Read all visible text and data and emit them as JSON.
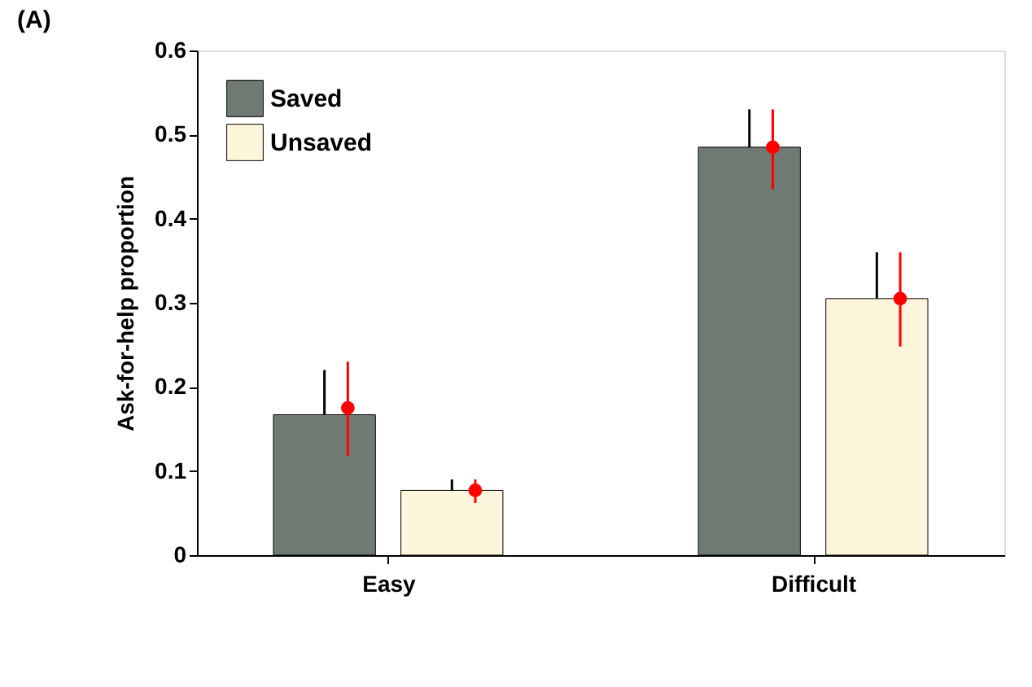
{
  "chart_data": {
    "type": "bar",
    "title": "(A)",
    "ylabel": "Ask-for-help proportion",
    "categories": [
      "Easy",
      "Difficult"
    ],
    "series": [
      {
        "name": "Saved",
        "color": "#6f7a72",
        "values": [
          0.167,
          0.485
        ],
        "errors": [
          [
            0.167,
            0.22
          ],
          [
            0.485,
            0.53
          ]
        ]
      },
      {
        "name": "Unsaved",
        "color": "#fdf5dc",
        "values": [
          0.077,
          0.305
        ],
        "errors": [
          [
            0.077,
            0.09
          ],
          [
            0.305,
            0.36
          ]
        ]
      },
      {
        "type": "scatter",
        "color": "#ff0000",
        "marker": "circle",
        "x": [
          "Easy",
          "Difficult"
        ],
        "values": [
          0.175,
          0.485
        ],
        "errors": [
          [
            0.118,
            0.23
          ],
          [
            0.435,
            0.53
          ]
        ]
      },
      {
        "type": "scatter",
        "color": "#ff0000",
        "marker": "circle",
        "x": [
          "Easy",
          "Difficult"
        ],
        "values": [
          0.077,
          0.305
        ],
        "errors": [
          [
            0.062,
            0.09
          ],
          [
            0.248,
            0.36
          ]
        ]
      }
    ],
    "ylim": [
      0,
      0.6
    ],
    "yticks": [
      0,
      0.1,
      0.2,
      0.3,
      0.4,
      0.5,
      0.6
    ],
    "grid": false,
    "legend": "top left"
  }
}
